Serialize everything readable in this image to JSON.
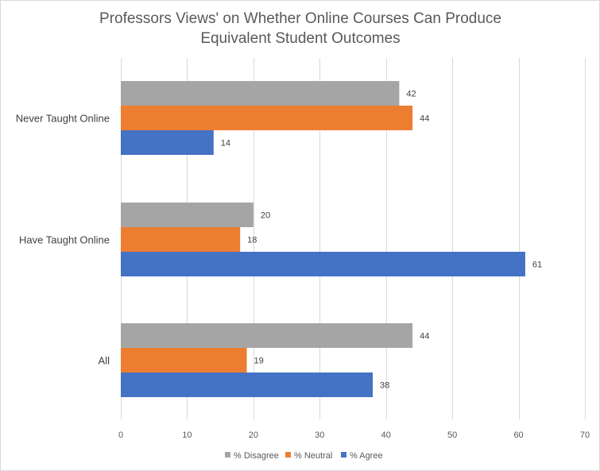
{
  "chart_data": {
    "type": "bar",
    "orientation": "horizontal",
    "title_lines": [
      "Professors Views' on Whether Online Courses Can Produce",
      "Equivalent Student Outcomes"
    ],
    "categories": [
      "Never Taught Online",
      "Have Taught Online",
      "All"
    ],
    "series": [
      {
        "name": "% Disagree",
        "color": "#a5a5a5",
        "values": [
          42,
          20,
          44
        ]
      },
      {
        "name": "% Neutral",
        "color": "#ed7d31",
        "values": [
          44,
          18,
          19
        ]
      },
      {
        "name": "% Agree",
        "color": "#4472c4",
        "values": [
          14,
          61,
          38
        ]
      }
    ],
    "xlim": [
      0,
      70
    ],
    "xticks": [
      0,
      10,
      20,
      30,
      40,
      50,
      60,
      70
    ],
    "grid": "vertical major gridlines",
    "legend_position": "bottom",
    "data_labels": true
  }
}
